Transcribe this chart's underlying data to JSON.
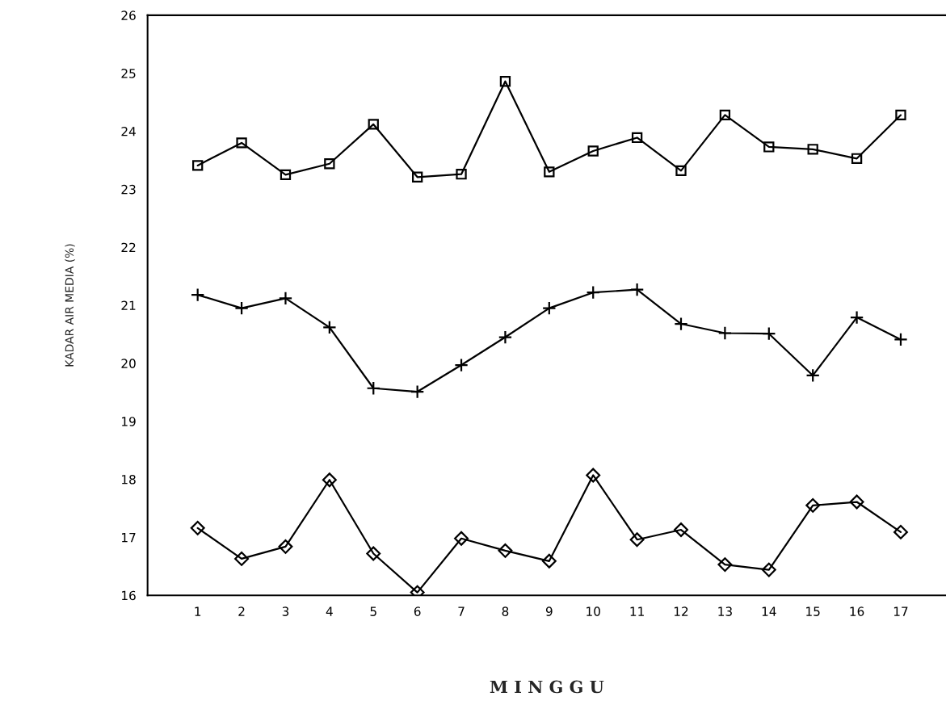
{
  "chart_data": {
    "type": "line",
    "xlabel": "M I N G G U",
    "ylabel": "KADAR AIR MEDIA (%)",
    "categories": [
      "1",
      "2",
      "3",
      "4",
      "5",
      "6",
      "7",
      "8",
      "9",
      "10",
      "11",
      "12",
      "13",
      "14",
      "15",
      "16",
      "17"
    ],
    "series": [
      {
        "color": "#000000",
        "marker": "square",
        "values": [
          23.41,
          23.8,
          23.25,
          23.44,
          24.12,
          23.21,
          23.26,
          24.86,
          23.3,
          23.66,
          23.89,
          23.32,
          24.28,
          23.73,
          23.69,
          23.53,
          24.28
        ]
      },
      {
        "color": "#000000",
        "marker": "cross",
        "values": [
          21.18,
          20.95,
          21.12,
          20.62,
          19.57,
          19.51,
          19.97,
          20.45,
          20.95,
          21.22,
          21.27,
          20.68,
          20.52,
          20.51,
          19.79,
          20.79,
          20.41
        ]
      },
      {
        "color": "#000000",
        "marker": "diamond",
        "values": [
          17.16,
          16.63,
          16.84,
          17.99,
          16.72,
          16.05,
          16.98,
          16.77,
          16.59,
          18.07,
          16.96,
          17.13,
          16.53,
          16.44,
          17.55,
          17.61,
          17.09
        ]
      }
    ],
    "ylim": [
      16,
      26
    ],
    "yticks": [
      16,
      17,
      18,
      19,
      20,
      21,
      22,
      23,
      24,
      25,
      26
    ],
    "grid": false,
    "line_style": "solid"
  }
}
